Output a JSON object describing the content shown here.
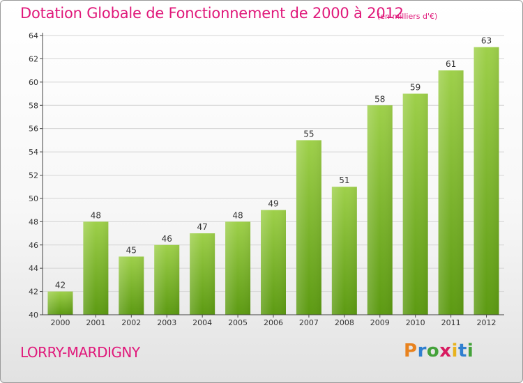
{
  "header": {
    "title": "Dotation Globale de Fonctionnement de 2000 à 2012",
    "unit": "(en milliers d'€)"
  },
  "footer": {
    "commune": "LORRY-MARDIGNY",
    "logo_text": "Proxiti",
    "logo_colors": [
      "#e8821e",
      "#2f7fd0",
      "#44a23a",
      "#d81b60",
      "#e8b21e",
      "#2f7fd0",
      "#44a23a"
    ]
  },
  "colors": {
    "accent": "#e0187a",
    "bar_top": "#9ed04a",
    "bar_bottom": "#5c9a12",
    "grid": "#d4d4d4",
    "axis": "#444444"
  },
  "chart_data": {
    "type": "bar",
    "categories": [
      "2000",
      "2001",
      "2002",
      "2003",
      "2004",
      "2005",
      "2006",
      "2007",
      "2008",
      "2009",
      "2010",
      "2011",
      "2012"
    ],
    "values": [
      42,
      48,
      45,
      46,
      47,
      48,
      49,
      55,
      51,
      58,
      59,
      61,
      63
    ],
    "ylim": [
      40,
      64
    ],
    "yticks": [
      40,
      42,
      44,
      46,
      48,
      50,
      52,
      54,
      56,
      58,
      60,
      62,
      64
    ],
    "grid": true,
    "data_labels": true
  }
}
